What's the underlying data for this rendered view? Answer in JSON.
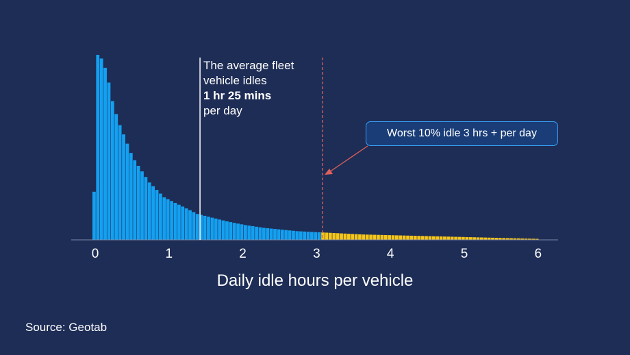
{
  "chart_data": {
    "type": "bar",
    "title": "",
    "xlabel": "Daily idle hours per vehicle",
    "ylabel": "",
    "xlim": [
      -0.05,
      6.05
    ],
    "x_ticks": [
      "0",
      "1",
      "2",
      "3",
      "4",
      "5",
      "6"
    ],
    "bin_width": 0.05,
    "colors": {
      "main": "#14a0f0",
      "worst": "#f5c518",
      "mean_line": "#ffffff",
      "threshold_line": "#e0605a",
      "background": "#1e2d56"
    },
    "mean_hours": 1.42,
    "threshold_hours": 3.08,
    "series": [
      {
        "values": [
          26,
          100,
          98,
          93,
          85,
          75,
          68,
          62,
          57,
          52,
          47,
          43,
          40,
          37,
          34,
          31,
          29,
          27,
          25,
          23,
          22,
          21,
          20,
          19,
          18,
          17,
          16,
          15,
          14,
          13.5,
          13,
          12.5,
          12,
          11.5,
          11,
          10.5,
          10,
          9.6,
          9.2,
          8.8,
          8.4,
          8,
          7.7,
          7.4,
          7.1,
          6.8,
          6.5,
          6.3,
          6.1,
          5.9,
          5.7,
          5.5,
          5.3,
          5.1,
          4.9,
          4.7,
          4.6,
          4.5,
          4.4,
          4.3,
          4.2,
          4.1,
          4,
          3.9,
          3.8,
          3.7,
          3.6,
          3.5,
          3.4,
          3.3,
          3.2,
          3.1,
          3.0,
          2.9,
          2.85,
          2.8,
          2.75,
          2.7,
          2.65,
          2.6,
          2.55,
          2.5,
          2.45,
          2.4,
          2.35,
          2.3,
          2.25,
          2.2,
          2.15,
          2.1,
          2.05,
          2.0,
          1.95,
          1.9,
          1.85,
          1.8,
          1.75,
          1.7,
          1.65,
          1.6,
          1.55,
          1.5,
          1.45,
          1.4,
          1.35,
          1.3,
          1.25,
          1.2,
          1.15,
          1.1,
          1.05,
          1.0,
          0.95,
          0.9,
          0.85,
          0.8,
          0.75,
          0.7,
          0.65,
          0.6,
          0.55
        ]
      }
    ]
  },
  "annotation": {
    "line1": "The average fleet",
    "line2": "vehicle idles",
    "line3": "1 hr 25 mins",
    "line4": "per day"
  },
  "callout": {
    "text": "Worst 10% idle 3 hrs + per day"
  },
  "source": "Source: Geotab"
}
